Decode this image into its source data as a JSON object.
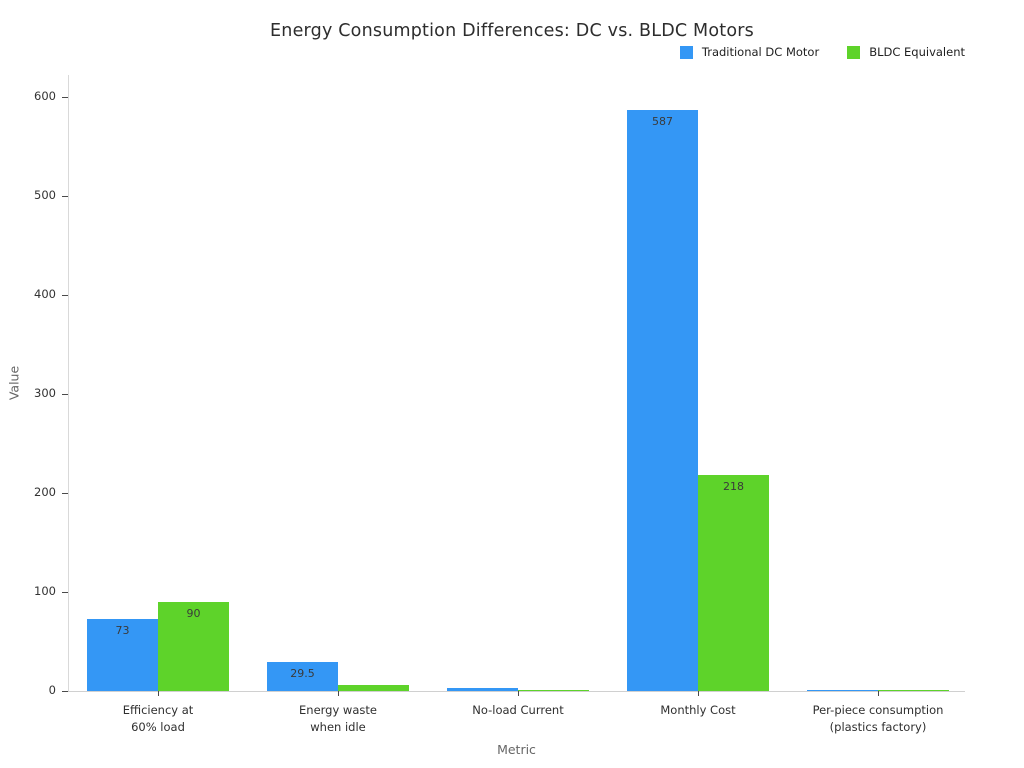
{
  "title": "Energy Consumption Differences: DC vs. BLDC Motors",
  "colors": {
    "dc_blue": "#3497F5",
    "bldc_green": "#5ED32A",
    "axis_line": "#d9d9d9",
    "tick_text": "#333333"
  },
  "chart_data": {
    "type": "bar",
    "title": "Energy Consumption Differences: DC vs. BLDC Motors",
    "xlabel": "Metric",
    "ylabel": "Value",
    "categories": [
      "Efficiency at\n60% load",
      "Energy waste\nwhen idle",
      "No-load Current",
      "Monthly Cost",
      "Per-piece consumption\n(plastics factory)"
    ],
    "series": [
      {
        "name": "Traditional DC Motor",
        "color": "#3497F5",
        "values": [
          73,
          29.5,
          3,
          587,
          0.6
        ]
      },
      {
        "name": "BLDC Equivalent",
        "color": "#5ED32A",
        "values": [
          90,
          6.5,
          0.9,
          218,
          0.4
        ]
      }
    ],
    "visible_value_labels": [
      "73",
      "90",
      "29.5",
      "587",
      "218"
    ],
    "ylim": [
      0,
      622
    ],
    "yticks": [
      0,
      100,
      200,
      300,
      400,
      500,
      600
    ],
    "grid": false,
    "legend_position": "top-right",
    "background": "#ffffff"
  }
}
